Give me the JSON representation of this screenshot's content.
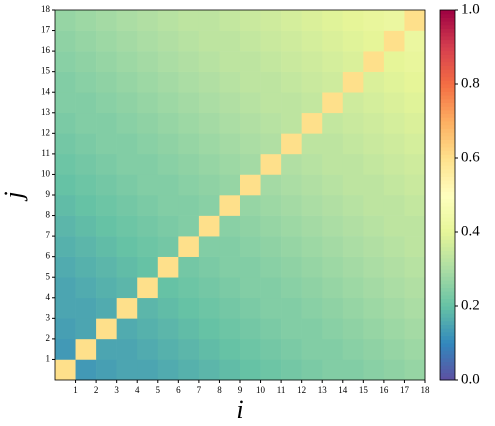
{
  "chart_data": {
    "type": "heatmap",
    "x_label": "i",
    "y_label": "j",
    "colormap": "Spectral_r",
    "xlim": [
      0,
      18
    ],
    "ylim": [
      0,
      18
    ],
    "clim": [
      0,
      1
    ],
    "xticks": [
      1,
      2,
      3,
      4,
      5,
      6,
      7,
      8,
      9,
      10,
      11,
      12,
      13,
      14,
      15,
      16,
      17,
      18
    ],
    "yticks": [
      1,
      2,
      3,
      4,
      5,
      6,
      7,
      8,
      9,
      10,
      11,
      12,
      13,
      14,
      15,
      16,
      17,
      18
    ],
    "colorbar_ticks": [
      {
        "value": 0,
        "label": "0.0"
      },
      {
        "value": 0.2,
        "label": "0.2"
      },
      {
        "value": 0.4,
        "label": "0.4"
      },
      {
        "value": 0.6,
        "label": "0.6"
      },
      {
        "value": 0.8,
        "label": "0.8"
      },
      {
        "value": 1,
        "label": "1.0"
      }
    ],
    "z": [
      [
        0.6,
        0.13,
        0.14,
        0.15,
        0.15,
        0.16,
        0.17,
        0.18,
        0.19,
        0.2,
        0.21,
        0.22,
        0.23,
        0.24,
        0.24,
        0.25,
        0.26,
        0.27
      ],
      [
        0.13,
        0.6,
        0.15,
        0.15,
        0.16,
        0.17,
        0.18,
        0.19,
        0.2,
        0.21,
        0.22,
        0.23,
        0.24,
        0.24,
        0.25,
        0.26,
        0.27,
        0.28
      ],
      [
        0.14,
        0.15,
        0.6,
        0.16,
        0.17,
        0.18,
        0.19,
        0.2,
        0.21,
        0.22,
        0.23,
        0.24,
        0.24,
        0.25,
        0.26,
        0.27,
        0.28,
        0.29
      ],
      [
        0.15,
        0.15,
        0.16,
        0.6,
        0.18,
        0.19,
        0.2,
        0.21,
        0.22,
        0.23,
        0.24,
        0.24,
        0.25,
        0.26,
        0.27,
        0.28,
        0.29,
        0.3
      ],
      [
        0.15,
        0.16,
        0.17,
        0.18,
        0.6,
        0.2,
        0.21,
        0.22,
        0.23,
        0.24,
        0.24,
        0.25,
        0.26,
        0.27,
        0.28,
        0.29,
        0.3,
        0.31
      ],
      [
        0.16,
        0.17,
        0.18,
        0.19,
        0.2,
        0.6,
        0.22,
        0.23,
        0.24,
        0.24,
        0.25,
        0.26,
        0.27,
        0.28,
        0.29,
        0.3,
        0.31,
        0.32
      ],
      [
        0.17,
        0.18,
        0.19,
        0.2,
        0.21,
        0.22,
        0.6,
        0.24,
        0.24,
        0.25,
        0.26,
        0.27,
        0.28,
        0.29,
        0.3,
        0.31,
        0.32,
        0.33
      ],
      [
        0.18,
        0.19,
        0.2,
        0.21,
        0.22,
        0.23,
        0.24,
        0.6,
        0.25,
        0.26,
        0.27,
        0.28,
        0.29,
        0.3,
        0.31,
        0.32,
        0.33,
        0.33
      ],
      [
        0.19,
        0.2,
        0.21,
        0.22,
        0.23,
        0.24,
        0.24,
        0.25,
        0.6,
        0.27,
        0.28,
        0.29,
        0.3,
        0.31,
        0.32,
        0.33,
        0.33,
        0.34
      ],
      [
        0.2,
        0.21,
        0.22,
        0.23,
        0.24,
        0.24,
        0.25,
        0.26,
        0.27,
        0.6,
        0.29,
        0.3,
        0.31,
        0.32,
        0.33,
        0.33,
        0.34,
        0.35
      ],
      [
        0.21,
        0.22,
        0.23,
        0.24,
        0.24,
        0.25,
        0.26,
        0.27,
        0.28,
        0.29,
        0.6,
        0.31,
        0.32,
        0.33,
        0.33,
        0.34,
        0.35,
        0.36
      ],
      [
        0.22,
        0.23,
        0.24,
        0.24,
        0.25,
        0.26,
        0.27,
        0.28,
        0.29,
        0.3,
        0.31,
        0.6,
        0.33,
        0.33,
        0.34,
        0.35,
        0.36,
        0.37
      ],
      [
        0.23,
        0.24,
        0.24,
        0.25,
        0.26,
        0.27,
        0.28,
        0.29,
        0.3,
        0.31,
        0.32,
        0.33,
        0.6,
        0.34,
        0.35,
        0.36,
        0.37,
        0.38
      ],
      [
        0.24,
        0.24,
        0.25,
        0.26,
        0.27,
        0.28,
        0.29,
        0.3,
        0.31,
        0.32,
        0.33,
        0.33,
        0.34,
        0.6,
        0.36,
        0.37,
        0.38,
        0.39
      ],
      [
        0.24,
        0.25,
        0.26,
        0.27,
        0.28,
        0.29,
        0.3,
        0.31,
        0.32,
        0.33,
        0.33,
        0.34,
        0.35,
        0.36,
        0.6,
        0.38,
        0.39,
        0.4
      ],
      [
        0.25,
        0.26,
        0.27,
        0.28,
        0.29,
        0.3,
        0.31,
        0.32,
        0.33,
        0.33,
        0.34,
        0.35,
        0.36,
        0.37,
        0.38,
        0.6,
        0.4,
        0.41
      ],
      [
        0.26,
        0.27,
        0.28,
        0.29,
        0.3,
        0.31,
        0.32,
        0.33,
        0.33,
        0.34,
        0.35,
        0.36,
        0.37,
        0.38,
        0.39,
        0.4,
        0.6,
        0.42
      ],
      [
        0.27,
        0.28,
        0.29,
        0.3,
        0.31,
        0.32,
        0.33,
        0.33,
        0.34,
        0.35,
        0.36,
        0.37,
        0.38,
        0.39,
        0.4,
        0.41,
        0.42,
        0.6
      ]
    ]
  }
}
